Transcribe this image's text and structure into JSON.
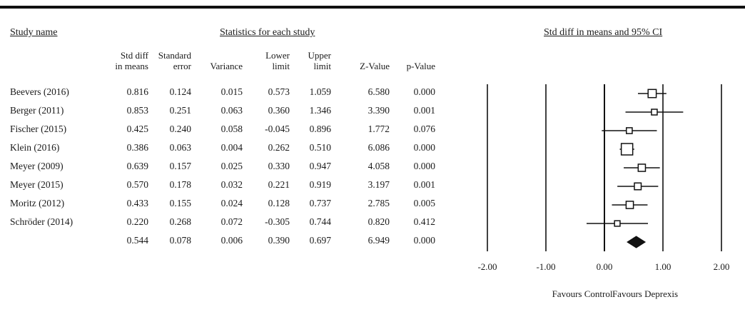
{
  "headers": {
    "study_name": "Study name",
    "statistics": "Statistics for each study",
    "plot_title": "Std diff in means and 95% CI"
  },
  "columns": [
    {
      "key": "std_diff",
      "line1": "Std diff",
      "line2": "in means"
    },
    {
      "key": "se",
      "line1": "Standard",
      "line2": "error"
    },
    {
      "key": "var",
      "line1": "",
      "line2": "Variance"
    },
    {
      "key": "lower",
      "line1": "Lower",
      "line2": "limit"
    },
    {
      "key": "upper",
      "line1": "Upper",
      "line2": "limit"
    },
    {
      "key": "z",
      "line1": "",
      "line2": "Z-Value"
    },
    {
      "key": "p",
      "line1": "",
      "line2": "p-Value"
    }
  ],
  "rows": [
    {
      "study": "Beevers (2016)",
      "std_diff": "0.816",
      "se": "0.124",
      "var": "0.015",
      "lower": "0.573",
      "upper": "1.059",
      "z": "6.580",
      "p": "0.000"
    },
    {
      "study": "Berger (2011)",
      "std_diff": "0.853",
      "se": "0.251",
      "var": "0.063",
      "lower": "0.360",
      "upper": "1.346",
      "z": "3.390",
      "p": "0.001"
    },
    {
      "study": "Fischer (2015)",
      "std_diff": "0.425",
      "se": "0.240",
      "var": "0.058",
      "lower": "-0.045",
      "upper": "0.896",
      "z": "1.772",
      "p": "0.076"
    },
    {
      "study": "Klein (2016)",
      "std_diff": "0.386",
      "se": "0.063",
      "var": "0.004",
      "lower": "0.262",
      "upper": "0.510",
      "z": "6.086",
      "p": "0.000"
    },
    {
      "study": "Meyer (2009)",
      "std_diff": "0.639",
      "se": "0.157",
      "var": "0.025",
      "lower": "0.330",
      "upper": "0.947",
      "z": "4.058",
      "p": "0.000"
    },
    {
      "study": "Meyer (2015)",
      "std_diff": "0.570",
      "se": "0.178",
      "var": "0.032",
      "lower": "0.221",
      "upper": "0.919",
      "z": "3.197",
      "p": "0.001"
    },
    {
      "study": "Moritz (2012)",
      "std_diff": "0.433",
      "se": "0.155",
      "var": "0.024",
      "lower": "0.128",
      "upper": "0.737",
      "z": "2.785",
      "p": "0.005"
    },
    {
      "study": "Schröder (2014)",
      "std_diff": "0.220",
      "se": "0.268",
      "var": "0.072",
      "lower": "-0.305",
      "upper": "0.744",
      "z": "0.820",
      "p": "0.412"
    },
    {
      "study": "",
      "std_diff": "0.544",
      "se": "0.078",
      "var": "0.006",
      "lower": "0.390",
      "upper": "0.697",
      "z": "6.949",
      "p": "0.000"
    }
  ],
  "chart_data": {
    "type": "forest",
    "title": "Std diff in means and 95% CI",
    "xlim": [
      -2.0,
      2.0
    ],
    "ticks": [
      "-2.00",
      "-1.00",
      "0.00",
      "1.00",
      "2.00"
    ],
    "tick_values": [
      -2,
      -1,
      0,
      1,
      2
    ],
    "favours_left": "Favours Control",
    "favours_right": "Favours Deprexis",
    "studies": [
      {
        "name": "Beevers (2016)",
        "estimate": 0.816,
        "lower": 0.573,
        "upper": 1.059,
        "weight": 0.124
      },
      {
        "name": "Berger (2011)",
        "estimate": 0.853,
        "lower": 0.36,
        "upper": 1.346,
        "weight": 0.251
      },
      {
        "name": "Fischer (2015)",
        "estimate": 0.425,
        "lower": -0.045,
        "upper": 0.896,
        "weight": 0.24
      },
      {
        "name": "Klein (2016)",
        "estimate": 0.386,
        "lower": 0.262,
        "upper": 0.51,
        "weight": 0.063
      },
      {
        "name": "Meyer (2009)",
        "estimate": 0.639,
        "lower": 0.33,
        "upper": 0.947,
        "weight": 0.157
      },
      {
        "name": "Meyer (2015)",
        "estimate": 0.57,
        "lower": 0.221,
        "upper": 0.919,
        "weight": 0.178
      },
      {
        "name": "Moritz (2012)",
        "estimate": 0.433,
        "lower": 0.128,
        "upper": 0.737,
        "weight": 0.155
      },
      {
        "name": "Schröder (2014)",
        "estimate": 0.22,
        "lower": -0.305,
        "upper": 0.744,
        "weight": 0.268
      }
    ],
    "summary": {
      "estimate": 0.544,
      "lower": 0.39,
      "upper": 0.697
    }
  }
}
